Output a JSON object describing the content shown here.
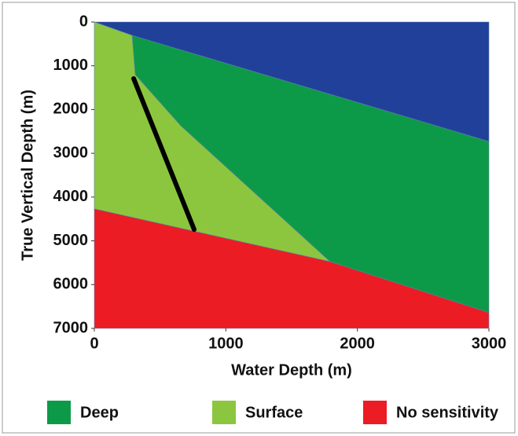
{
  "chart_data": {
    "type": "area",
    "xlabel": "Water Depth (m)",
    "ylabel": "True Vertical Depth (m)",
    "xlim": [
      0,
      3000
    ],
    "ylim": [
      7000,
      0
    ],
    "xticks": [
      0,
      1000,
      2000,
      3000
    ],
    "yticks": [
      0,
      1000,
      2000,
      3000,
      4000,
      5000,
      6000,
      7000
    ],
    "series": [
      {
        "color": "#21409a",
        "x": [
          0,
          3000,
          3000,
          287
        ],
        "y": [
          0,
          0,
          2730,
          305
        ]
      },
      {
        "name": "Deep",
        "color": "#0d9a48",
        "x": [
          287,
          311,
          657,
          1793,
          3000,
          3000
        ],
        "y": [
          305,
          1203,
          2370,
          5476,
          6640,
          2730
        ]
      },
      {
        "name": "Surface",
        "color": "#8cc63f",
        "x": [
          0,
          287,
          311,
          657,
          1793,
          0
        ],
        "y": [
          0,
          305,
          1203,
          2370,
          5476,
          4270
        ]
      },
      {
        "name": "No sensitivity",
        "color": "#ec1c24",
        "x": [
          0,
          1793,
          3000,
          3000,
          0
        ],
        "y": [
          4270,
          5476,
          6640,
          7000,
          7000
        ]
      }
    ],
    "line": {
      "color": "#000000",
      "x": [
        299,
        759
      ],
      "y": [
        1293,
        4740
      ]
    }
  }
}
